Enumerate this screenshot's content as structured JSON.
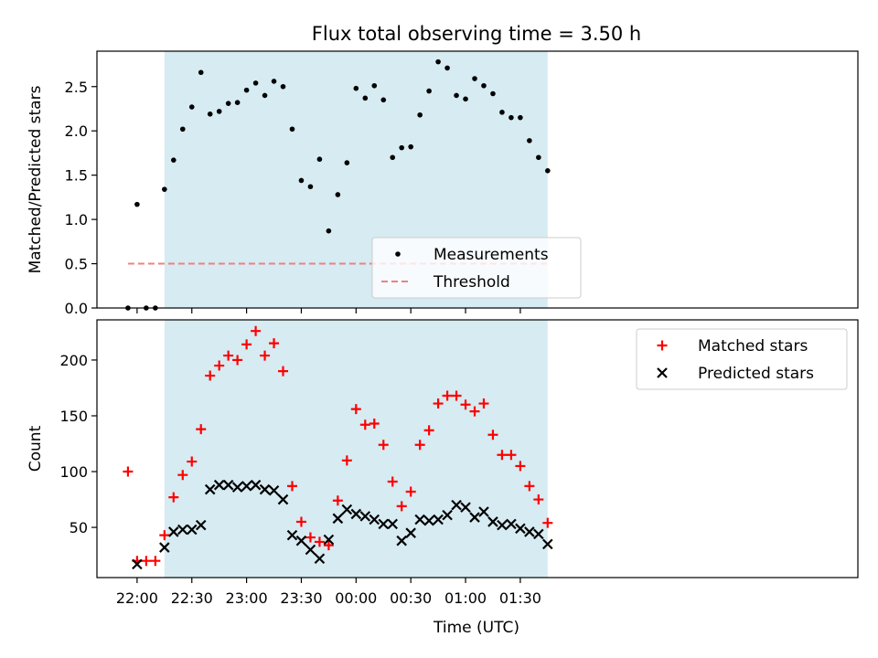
{
  "chart_data": [
    {
      "type": "scatter",
      "title": "Flux total observing time = 3.50 h",
      "xlabel": "",
      "ylabel": "Matched/Predicted stars",
      "ylim": [
        0,
        2.9
      ],
      "xlim_minutes_after_21_45": [
        -7,
        410
      ],
      "yticks": [
        0.0,
        0.5,
        1.0,
        1.5,
        2.0,
        2.5
      ],
      "ytick_labels": [
        "0.0",
        "0.5",
        "1.0",
        "1.5",
        "2.0",
        "2.5"
      ],
      "grid": false,
      "legend_placement": "lower-center",
      "shaded_span": [
        "22:15",
        "01:45"
      ],
      "series": [
        {
          "name": "Measurements",
          "marker": "dot",
          "color": "#000000",
          "x": [
            "21:55",
            "22:00",
            "22:05",
            "22:10",
            "22:15",
            "22:20",
            "22:25",
            "22:30",
            "22:35",
            "22:40",
            "22:45",
            "22:50",
            "22:55",
            "23:00",
            "23:05",
            "23:10",
            "23:15",
            "23:20",
            "23:25",
            "23:30",
            "23:35",
            "23:40",
            "23:45",
            "23:50",
            "23:55",
            "00:00",
            "00:05",
            "00:10",
            "00:15",
            "00:20",
            "00:25",
            "00:30",
            "00:35",
            "00:40",
            "00:45",
            "00:50",
            "00:55",
            "01:00",
            "01:05",
            "01:10",
            "01:15",
            "01:20",
            "01:25",
            "01:30",
            "01:35",
            "01:40",
            "01:45"
          ],
          "values": [
            0.0,
            1.17,
            0.0,
            0.0,
            1.34,
            1.67,
            2.02,
            2.27,
            2.66,
            2.19,
            2.22,
            2.31,
            2.32,
            2.46,
            2.54,
            2.4,
            2.56,
            2.5,
            2.02,
            1.44,
            1.37,
            1.68,
            0.87,
            1.28,
            1.64,
            2.48,
            2.37,
            2.51,
            2.35,
            1.7,
            1.81,
            1.82,
            2.18,
            2.45,
            2.78,
            2.71,
            2.4,
            2.36,
            2.59,
            2.51,
            2.42,
            2.21,
            2.15,
            2.15,
            1.89,
            1.7,
            1.55
          ]
        },
        {
          "name": "Threshold",
          "marker": "dashed-line",
          "color": "#f08080",
          "x": [
            "21:55",
            "01:45"
          ],
          "values": [
            0.5,
            0.5
          ]
        }
      ]
    },
    {
      "type": "scatter",
      "title": "",
      "xlabel": "Time (UTC)",
      "ylabel": "Count",
      "ylim": [
        5,
        236
      ],
      "yticks": [
        50,
        100,
        150,
        200
      ],
      "ytick_labels": [
        "50",
        "100",
        "150",
        "200"
      ],
      "xticks": [
        "22:00",
        "22:30",
        "23:00",
        "23:30",
        "00:00",
        "00:30",
        "01:00",
        "01:30"
      ],
      "grid": false,
      "legend_placement": "upper-right",
      "shaded_span": [
        "22:15",
        "01:45"
      ],
      "series": [
        {
          "name": "Matched stars",
          "marker": "plus",
          "color": "#ff0000",
          "x": [
            "21:55",
            "22:00",
            "22:05",
            "22:10",
            "22:15",
            "22:20",
            "22:25",
            "22:30",
            "22:35",
            "22:40",
            "22:45",
            "22:50",
            "22:55",
            "23:00",
            "23:05",
            "23:10",
            "23:15",
            "23:20",
            "23:25",
            "23:30",
            "23:35",
            "23:40",
            "23:45",
            "23:50",
            "23:55",
            "00:00",
            "00:05",
            "00:10",
            "00:15",
            "00:20",
            "00:25",
            "00:30",
            "00:35",
            "00:40",
            "00:45",
            "00:50",
            "00:55",
            "01:00",
            "01:05",
            "01:10",
            "01:15",
            "01:20",
            "01:25",
            "01:30",
            "01:35",
            "01:40",
            "01:45"
          ],
          "values": [
            100,
            20,
            20,
            20,
            43,
            77,
            97,
            109,
            138,
            186,
            195,
            204,
            200,
            214,
            226,
            204,
            215,
            190,
            87,
            55,
            41,
            37,
            34,
            74,
            110,
            156,
            142,
            143,
            124,
            91,
            69,
            82,
            124,
            137,
            161,
            168,
            168,
            160,
            154,
            161,
            133,
            115,
            115,
            105,
            87,
            75,
            54
          ]
        },
        {
          "name": "Predicted stars",
          "marker": "x",
          "color": "#000000",
          "x": [
            "22:00",
            "22:15",
            "22:20",
            "22:25",
            "22:30",
            "22:35",
            "22:40",
            "22:45",
            "22:50",
            "22:55",
            "23:00",
            "23:05",
            "23:10",
            "23:15",
            "23:20",
            "23:25",
            "23:30",
            "23:35",
            "23:40",
            "23:45",
            "23:50",
            "23:55",
            "00:00",
            "00:05",
            "00:10",
            "00:15",
            "00:20",
            "00:25",
            "00:30",
            "00:35",
            "00:40",
            "00:45",
            "00:50",
            "00:55",
            "01:00",
            "01:05",
            "01:10",
            "01:15",
            "01:20",
            "01:25",
            "01:30",
            "01:35",
            "01:40",
            "01:45"
          ],
          "values": [
            17,
            32,
            46,
            48,
            48,
            52,
            84,
            88,
            88,
            86,
            87,
            88,
            84,
            83,
            75,
            43,
            38,
            30,
            22,
            39,
            58,
            66,
            62,
            60,
            57,
            53,
            53,
            38,
            45,
            57,
            56,
            57,
            61,
            70,
            68,
            59,
            64,
            55,
            52,
            53,
            49,
            46,
            44,
            35
          ]
        }
      ]
    }
  ]
}
